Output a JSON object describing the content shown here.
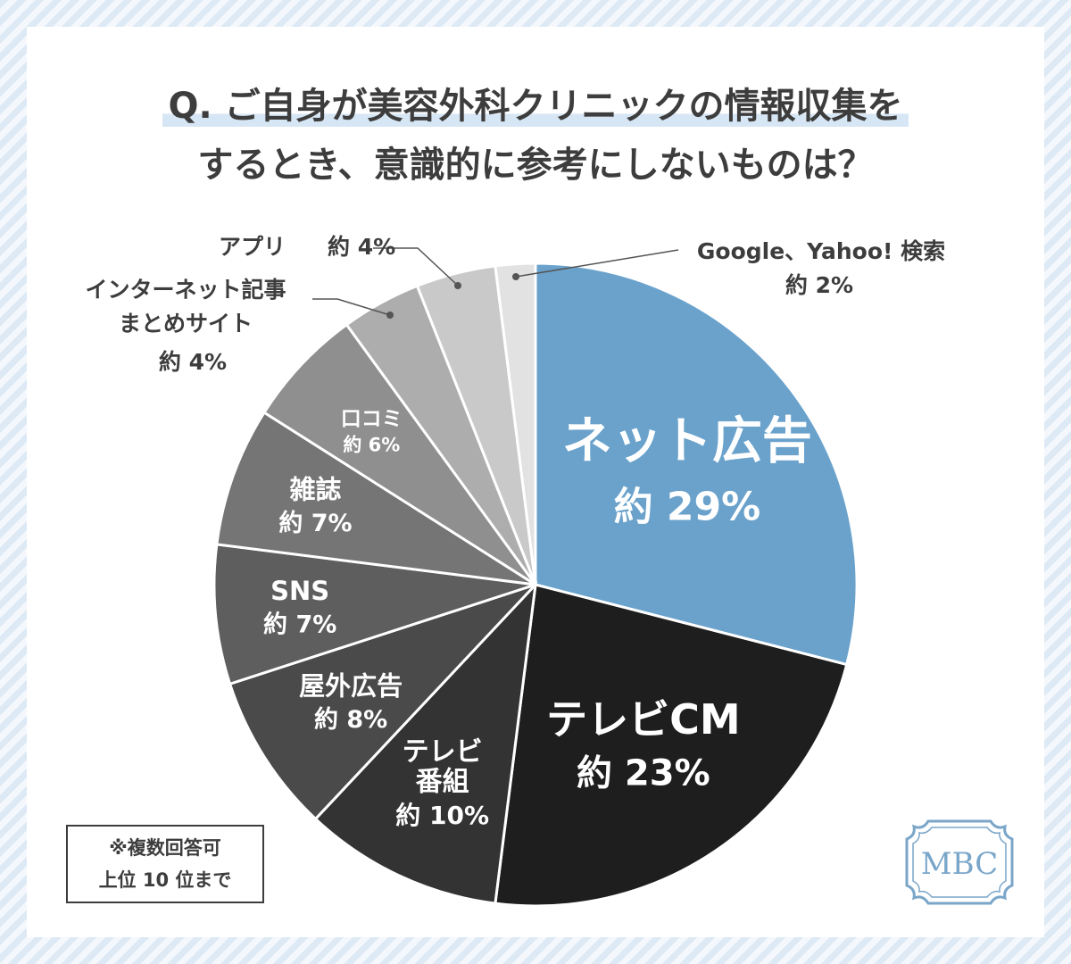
{
  "title": {
    "line1": "Q. ご自身が美容外科クリニックの情報収集を",
    "line2": "するとき、意識的に参考にしないものは？"
  },
  "chart_data": {
    "type": "pie",
    "start": "12 o'clock",
    "direction": "clockwise",
    "slices": [
      {
        "name": "ネット広告",
        "value": 29,
        "value_label": "約 29%",
        "color": "#6aa2cc",
        "text_color": "#ffffff",
        "label_position": "inside"
      },
      {
        "name": "テレビCM",
        "value": 23,
        "value_label": "約 23%",
        "color": "#1e1e1e",
        "text_color": "#ffffff",
        "label_position": "inside"
      },
      {
        "name": "テレビ番組",
        "value": 10,
        "value_label": "約 10%",
        "color": "#333333",
        "text_color": "#ffffff",
        "label_position": "inside"
      },
      {
        "name": "屋外広告",
        "value": 8,
        "value_label": "約 8%",
        "color": "#4a4a4a",
        "text_color": "#ffffff",
        "label_position": "inside"
      },
      {
        "name": "SNS",
        "value": 7,
        "value_label": "約 7%",
        "color": "#5e5e5e",
        "text_color": "#ffffff",
        "label_position": "inside"
      },
      {
        "name": "雑誌",
        "value": 7,
        "value_label": "約 7%",
        "color": "#757575",
        "text_color": "#ffffff",
        "label_position": "inside"
      },
      {
        "name": "口コミ",
        "value": 6,
        "value_label": "約 6%",
        "color": "#8f8f8f",
        "text_color": "#ffffff",
        "label_position": "inside"
      },
      {
        "name": "インターネット記事まとめサイト",
        "value": 4,
        "value_label": "約 4%",
        "color": "#adadad",
        "text_color": "#3d3d3d",
        "label_position": "outside"
      },
      {
        "name": "アプリ",
        "value": 4,
        "value_label": "約 4%",
        "color": "#c9c9c9",
        "text_color": "#3d3d3d",
        "label_position": "outside"
      },
      {
        "name": "Google、Yahoo! 検索",
        "value": 2,
        "value_label": "約 2%",
        "color": "#e2e2e2",
        "text_color": "#3d3d3d",
        "label_position": "outside"
      }
    ]
  },
  "note": {
    "line1": "※複数回答可",
    "line2": "上位 10 位まで"
  },
  "logo": {
    "text": "MBC",
    "color": "#7aa6c9"
  }
}
